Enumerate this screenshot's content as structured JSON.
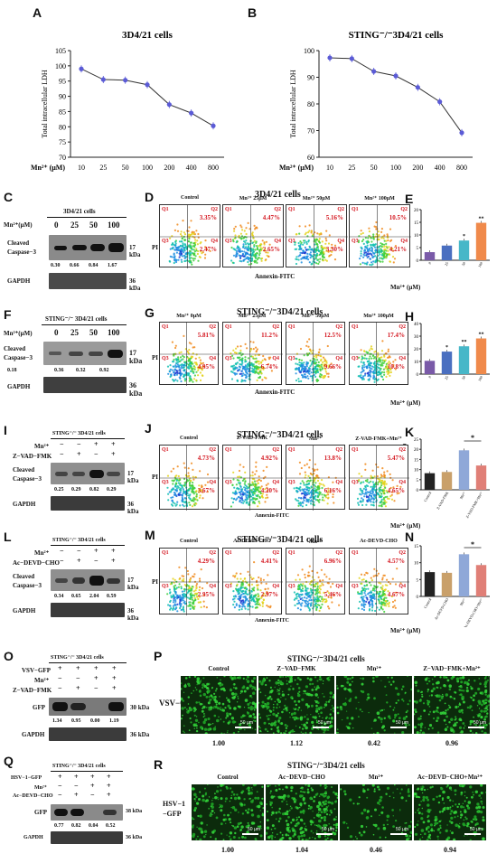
{
  "panels": {
    "A": {
      "label": "A",
      "title": "3D4/21 cells"
    },
    "B": {
      "label": "B",
      "title": "STING⁻/⁻3D4/21 cells"
    },
    "C": {
      "label": "C",
      "header": "3D4/21 cells",
      "mn_label": "Mn²⁺(μM)",
      "doses": [
        "0",
        "25",
        "50",
        "100"
      ],
      "blot1": "Cleaved Caspase−3",
      "kda1": "17 kDa",
      "values": [
        "0.30",
        "0.66",
        "0.84",
        "1.67"
      ],
      "blot2": "GAPDH",
      "kda2": "36 kDa"
    },
    "D": {
      "label": "D",
      "title": "3D4/21 cells",
      "ylabel": "PI",
      "xlabel": "Annexin-FITC",
      "plots": [
        {
          "name": "Control",
          "q2": "3.35%",
          "q4": "2.47%"
        },
        {
          "name": "Mn²⁺ 25μM",
          "q2": "4.47%",
          "q4": "2.65%"
        },
        {
          "name": "Mn²⁺ 50μM",
          "q2": "5.16%",
          "q4": "3.30%"
        },
        {
          "name": "Mn²⁺ 100μM",
          "q2": "10.5%",
          "q4": "4.21%"
        }
      ]
    },
    "E": {
      "label": "E",
      "ylabel": "Apoptosis Rate (%)",
      "mn_label": "Mn²⁺ (μM)",
      "cats": [
        "0",
        "25",
        "50",
        "100"
      ]
    },
    "F": {
      "label": "F",
      "header": "STING⁻/⁻ 3D4/21 cells",
      "mn_label": "Mn²⁺(μM)",
      "doses": [
        "0",
        "25",
        "50",
        "100"
      ],
      "blot1": "Cleaved Caspase−3",
      "kda1": "17 kDa",
      "values": [
        "0.18",
        "0.36",
        "0.32",
        "0.92"
      ],
      "blot2": "GAPDH",
      "kda2": "36 kDa"
    },
    "G": {
      "label": "G",
      "title": "STING⁻/⁻3D4/21 cells",
      "ylabel": "PI",
      "xlabel": "Annexin-FITC",
      "plots": [
        {
          "name": "Mn²⁺ 0μM",
          "q2": "5.81%",
          "q4": "4.95%"
        },
        {
          "name": "Mn²⁺ 25μM",
          "q2": "11.2%",
          "q4": "6.74%"
        },
        {
          "name": "Mn²⁺ 50μM",
          "q2": "12.5%",
          "q4": "9.66%"
        },
        {
          "name": "Mn²⁺ 100μM",
          "q2": "17.4%",
          "q4": "10.8%"
        }
      ]
    },
    "H": {
      "label": "H",
      "ylabel": "Apoptosis Rate (%)",
      "mn_label": "Mn²⁺ (μM)",
      "cats": [
        "0",
        "25",
        "50",
        "100"
      ]
    },
    "I": {
      "label": "I",
      "header": "STING⁻/⁻ 3D4/21 cells",
      "row1": "Mn²⁺",
      "row1_signs": [
        "−",
        "−",
        "+",
        "+"
      ],
      "row2": "Z−VAD−FMK",
      "row2_signs": [
        "−",
        "+",
        "−",
        "+"
      ],
      "blot1": "Cleaved Caspase−3",
      "kda1": "17 kDa",
      "values": [
        "0.25",
        "0.29",
        "0.82",
        "0.29"
      ],
      "blot2": "GAPDH",
      "kda2": "36 kDa"
    },
    "J": {
      "label": "J",
      "title": "STING⁻/⁻3D4/21 cells",
      "ylabel": "PI",
      "xlabel": "Annexin-FITC",
      "plots": [
        {
          "name": "Control",
          "q2": "4.73%",
          "q4": "3.67%"
        },
        {
          "name": "Z-VAD-FMK",
          "q2": "4.92%",
          "q4": "4.20%"
        },
        {
          "name": "Mn²⁺",
          "q2": "13.8%",
          "q4": "6.16%"
        },
        {
          "name": "Z-VAD-FMK+Mn²⁺",
          "q2": "5.47%",
          "q4": "4.65%"
        }
      ]
    },
    "K": {
      "label": "K",
      "ylabel": "Apoptosis Rate (%)",
      "mn_label": "Mn²⁺ (μM)",
      "cats": [
        "Control",
        "Z-VAD-FMK",
        "Mn²⁺",
        "Z-VAD-FMK+Mn²⁺"
      ],
      "sig": "*"
    },
    "L": {
      "label": "L",
      "header": "STING⁻/⁻ 3D4/21 cells",
      "row1": "Mn²⁺",
      "row1_signs": [
        "−",
        "−",
        "+",
        "+"
      ],
      "row2": "Ac−DEVD−CHO",
      "row2_signs": [
        "−",
        "+",
        "−",
        "+"
      ],
      "blot1": "Cleaved Caspase−3",
      "kda1": "17 kDa",
      "values": [
        "0.34",
        "0.65",
        "2.04",
        "0.59"
      ],
      "blot2": "GAPDH",
      "kda2": "36 kDa"
    },
    "M": {
      "label": "M",
      "title": "STING⁻/⁻3D4/21 cells",
      "ylabel": "PI",
      "xlabel": "Annexin-FITC",
      "plots": [
        {
          "name": "Control",
          "q2": "4.29%",
          "q4": "2.95%"
        },
        {
          "name": "Ac-DEVD-CHO",
          "q2": "4.41%",
          "q4": "2.97%"
        },
        {
          "name": "Mn²⁺",
          "q2": "6.96%",
          "q4": "5.46%"
        },
        {
          "name": "Ac-DEVD-CHO",
          "q2": "4.57%",
          "q4": "4.67%"
        }
      ]
    },
    "N": {
      "label": "N",
      "ylabel": "Apoptosis Rate (%)",
      "mn_label": "Mn²⁺ (μM)",
      "cats": [
        "Control",
        "Ac-DEVD-CHO",
        "Mn²⁺",
        "Ac-DEVD-CHO+Mn²⁺"
      ],
      "sig": "*"
    },
    "O": {
      "label": "O",
      "header": "STING⁻/⁻ 3D4/21 cells",
      "row0": "VSV−GFP",
      "row0_signs": [
        "+",
        "+",
        "+",
        "+"
      ],
      "row1": "Mn²⁺",
      "row1_signs": [
        "−",
        "−",
        "+",
        "+"
      ],
      "row2": "Z−VAD−FMK",
      "row2_signs": [
        "−",
        "+",
        "−",
        "+"
      ],
      "blot1": "GFP",
      "kda1": "30 kDa",
      "values": [
        "1.34",
        "0.95",
        "0.00",
        "1.19"
      ],
      "blot2": "GAPDH",
      "kda2": "36 kDa"
    },
    "P": {
      "label": "P",
      "title": "STING⁻/⁻3D4/21 cells",
      "rowlabel": "VSV−GFP",
      "cols": [
        "Control",
        "Z−VAD−FMK",
        "Mn²⁺",
        "Z−VAD−FMK+Mn²⁺"
      ],
      "values": [
        "1.00",
        "1.12",
        "0.42",
        "0.96"
      ],
      "scale": "50 μm"
    },
    "Q": {
      "label": "Q",
      "header": "STING⁻/⁻ 3D4/21 cells",
      "row0": "HSV−1−GFP",
      "row0_signs": [
        "+",
        "+",
        "+",
        "+"
      ],
      "row1": "Mn²⁺",
      "row1_signs": [
        "−",
        "−",
        "+",
        "+"
      ],
      "row2": "Ac−DEVD−CHO",
      "row2_signs": [
        "−",
        "+",
        "−",
        "+"
      ],
      "blot1": "GFP",
      "kda1": "38 kDa",
      "values": [
        "0.77",
        "0.82",
        "0.04",
        "0.52"
      ],
      "blot2": "GAPDH",
      "kda2": "36 kDa"
    },
    "R": {
      "label": "R",
      "title": "STING⁻/⁻3D4/21 cells",
      "rowlabel": "HSV−1 −GFP",
      "cols": [
        "Control",
        "Ac−DEVD−CHO",
        "Mn²⁺",
        "Ac−DEVD−CHO+Mn²⁺"
      ],
      "values": [
        "1.00",
        "1.04",
        "0.46",
        "0.94"
      ],
      "scale": "50 μm"
    }
  },
  "chart_data": [
    {
      "type": "line",
      "panel": "A",
      "title": "3D4/21 cells",
      "xlabel": "Mn²⁺ (μM)",
      "ylabel": "Total intracellular LDH",
      "categories": [
        "10",
        "25",
        "50",
        "100",
        "200",
        "400",
        "800"
      ],
      "values": [
        99,
        95.5,
        95.3,
        93.8,
        87.3,
        84.5,
        80.3
      ],
      "ylim": [
        70,
        105
      ],
      "yticks": [
        "70",
        "75",
        "80",
        "85",
        "90",
        "95",
        "100",
        "105"
      ],
      "color": "#5b5bd6"
    },
    {
      "type": "line",
      "panel": "B",
      "title": "STING⁻/⁻3D4/21 cells",
      "xlabel": "Mn²⁺ (μM)",
      "ylabel": "Total intracellular LDH",
      "categories": [
        "10",
        "25",
        "50",
        "100",
        "200",
        "400",
        "800"
      ],
      "values": [
        97.3,
        97,
        92.2,
        90.5,
        86.2,
        80.8,
        69.2
      ],
      "ylim": [
        60,
        100
      ],
      "yticks": [
        "60",
        "70",
        "80",
        "90",
        "100"
      ],
      "color": "#5b5bd6"
    },
    {
      "type": "bar",
      "panel": "E",
      "categories": [
        "0",
        "25",
        "50",
        "100"
      ],
      "values": [
        3.2,
        5.8,
        7.8,
        14.8
      ],
      "ylim": [
        0,
        20
      ],
      "yticks": [
        "0",
        "5",
        "10",
        "15",
        "20"
      ],
      "stars": [
        "",
        "",
        "*",
        "**"
      ],
      "colors": [
        "#7a5aa8",
        "#4a6fc0",
        "#47b7c8",
        "#f08a4b"
      ]
    },
    {
      "type": "bar",
      "panel": "H",
      "categories": [
        "0",
        "25",
        "50",
        "100"
      ],
      "values": [
        10.5,
        17.8,
        22,
        28.2
      ],
      "ylim": [
        0,
        40
      ],
      "yticks": [
        "0",
        "10",
        "20",
        "30",
        "40"
      ],
      "stars": [
        "",
        "*",
        "**",
        "**"
      ],
      "colors": [
        "#7a5aa8",
        "#4a6fc0",
        "#47b7c8",
        "#f08a4b"
      ]
    },
    {
      "type": "bar",
      "panel": "K",
      "categories": [
        "Control",
        "Z-VAD-FMK",
        "Mn²⁺",
        "Z-VAD-FMK+Mn²⁺"
      ],
      "values": [
        8.2,
        8.8,
        19.5,
        12
      ],
      "ylim": [
        0,
        25
      ],
      "yticks": [
        "0",
        "5",
        "10",
        "15",
        "20",
        "25"
      ],
      "stars": [
        "",
        "",
        "",
        ""
      ],
      "colors": [
        "#222222",
        "#c9a06a",
        "#8fa8d8",
        "#e07f77"
      ]
    },
    {
      "type": "bar",
      "panel": "N",
      "categories": [
        "Control",
        "Ac-DEVD-CHO",
        "Mn²⁺",
        "Ac-DEVD-CHO+Mn²⁺"
      ],
      "values": [
        7.2,
        7,
        12.5,
        9.3
      ],
      "ylim": [
        0,
        15
      ],
      "yticks": [
        "0",
        "5",
        "10",
        "15"
      ],
      "stars": [
        "",
        "",
        "",
        ""
      ],
      "colors": [
        "#222222",
        "#c9a06a",
        "#8fa8d8",
        "#e07f77"
      ]
    }
  ]
}
